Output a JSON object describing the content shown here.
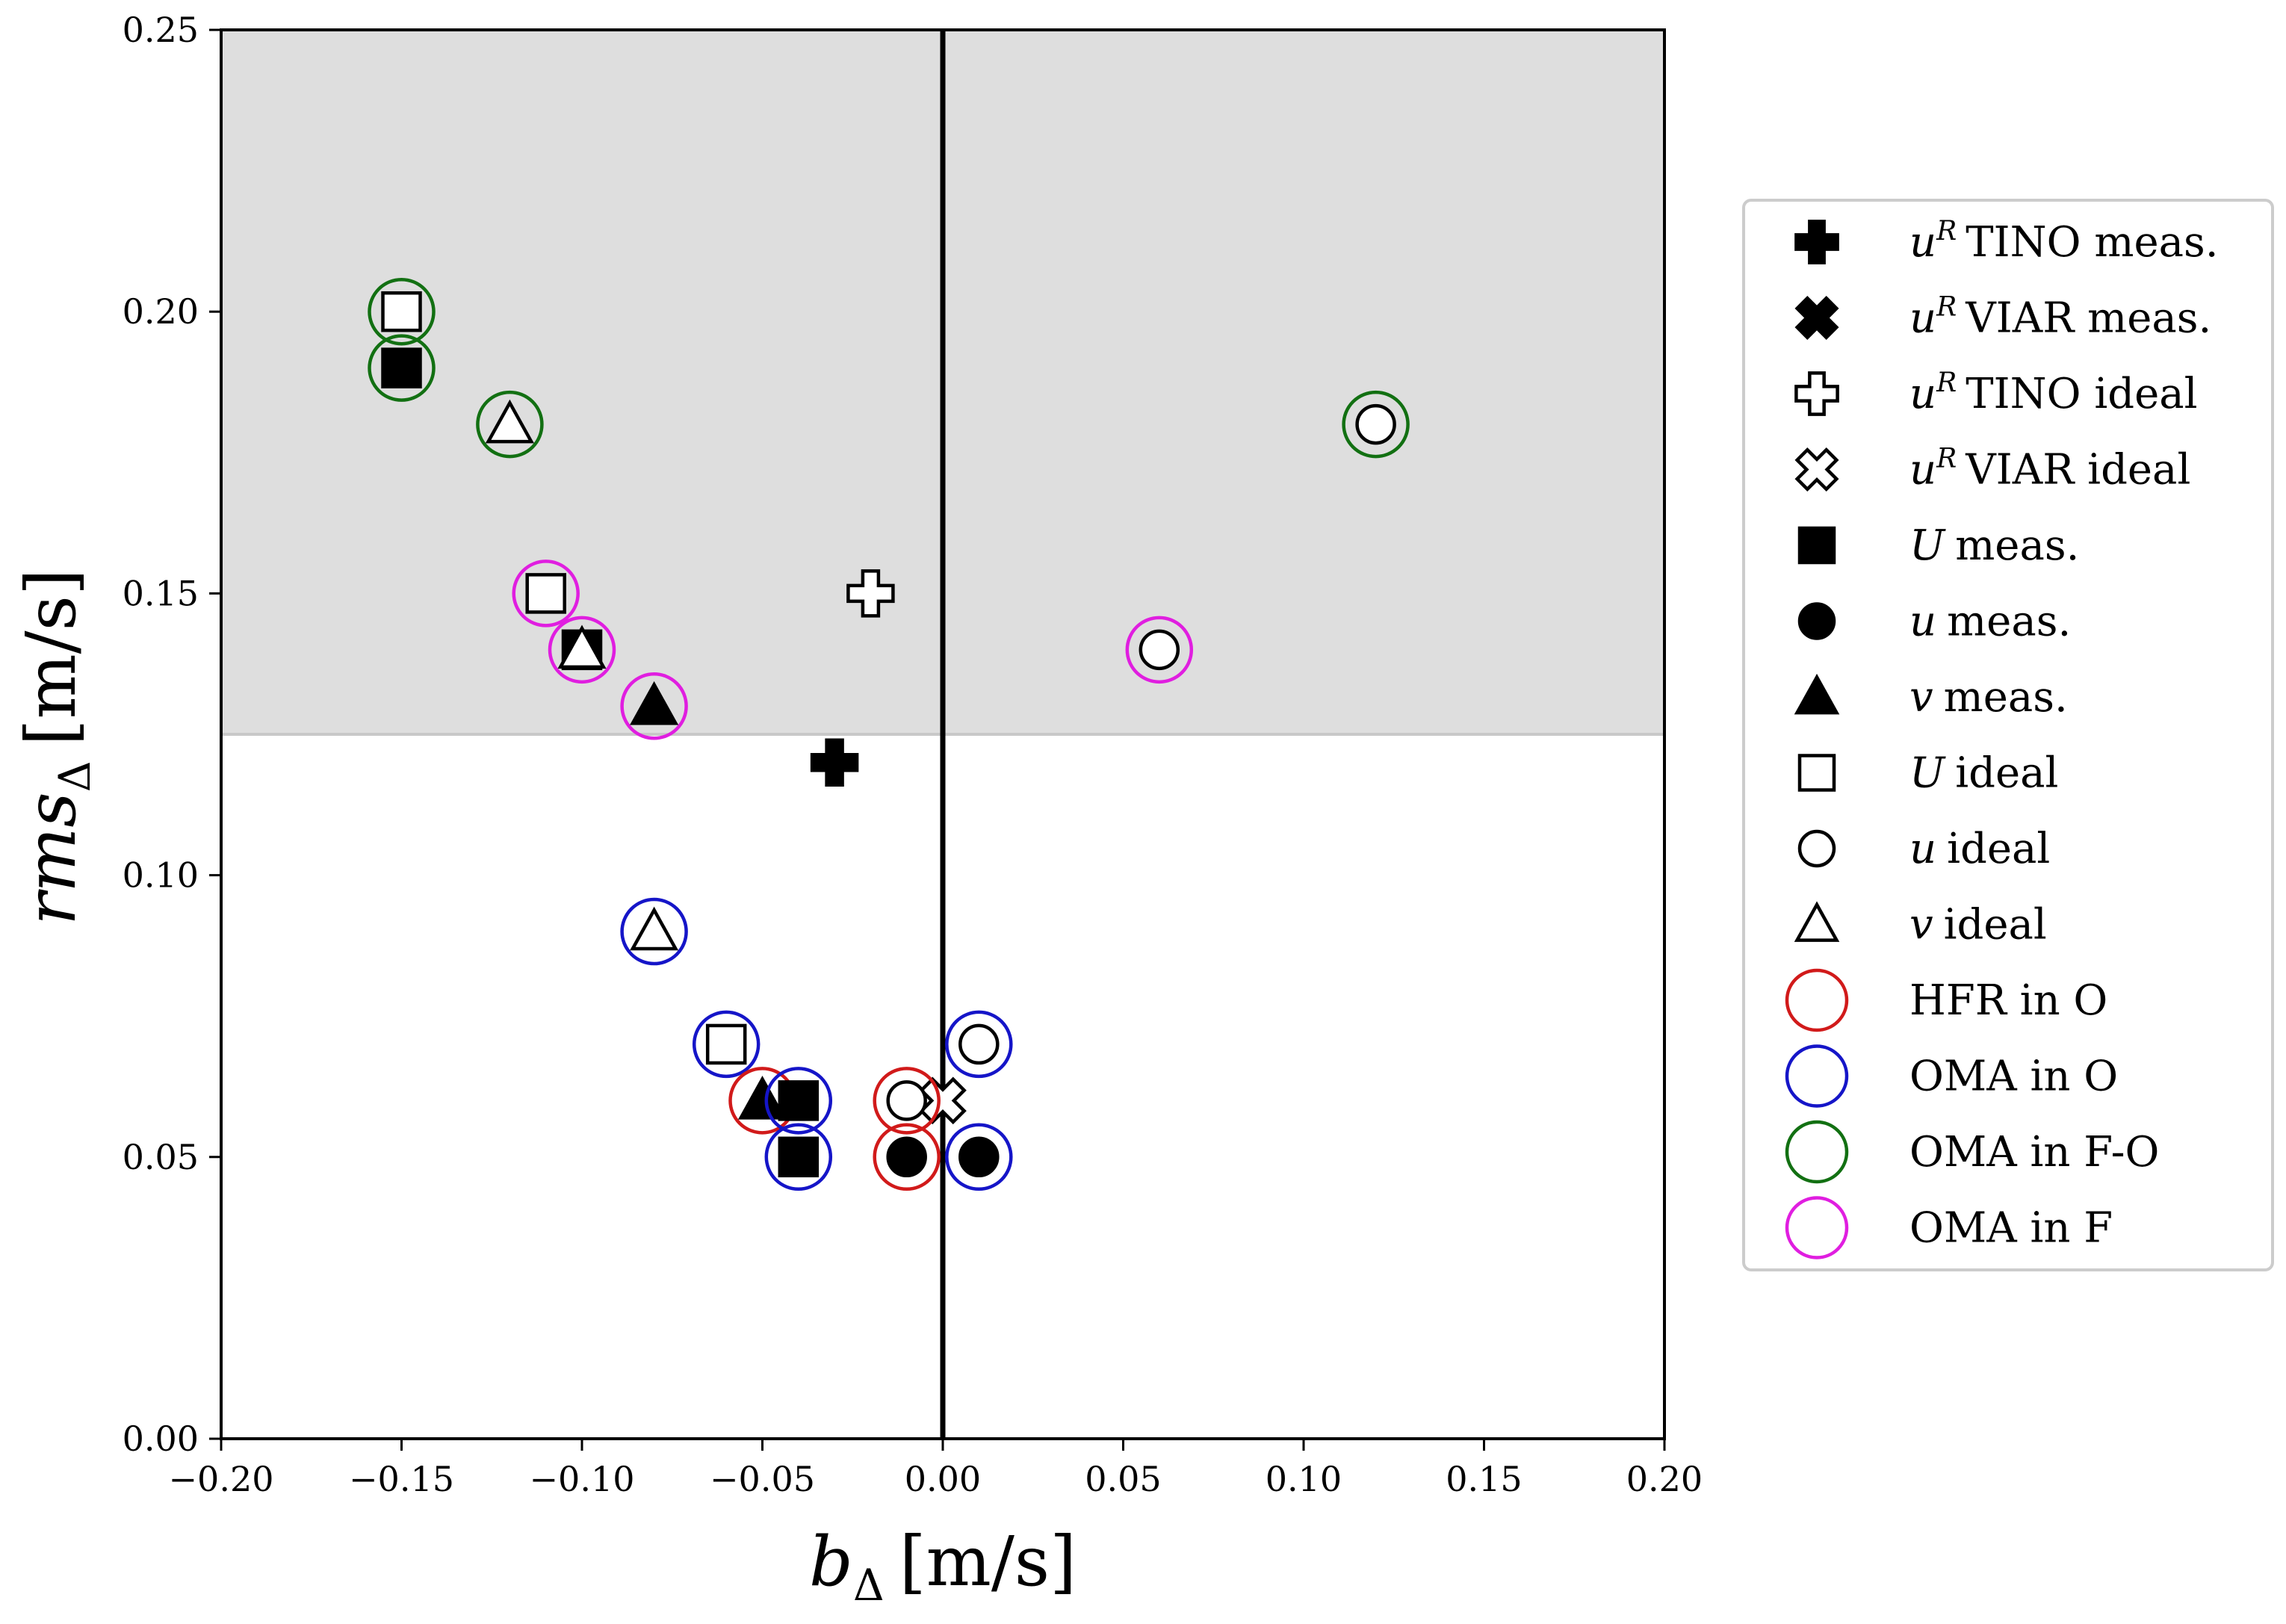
{
  "chart_data": {
    "type": "scatter",
    "title": "",
    "xlabel": {
      "main": "b",
      "sub": "Δ",
      "unit": "[m/s]"
    },
    "ylabel": {
      "main": "rms",
      "sub": "Δ",
      "unit": "[m/s]"
    },
    "xlim": [
      -0.2,
      0.2
    ],
    "ylim": [
      0.0,
      0.25
    ],
    "xticks": [
      "−0.20",
      "−0.15",
      "−0.10",
      "−0.05",
      "0.00",
      "0.05",
      "0.10",
      "0.15",
      "0.20"
    ],
    "yticks": [
      "0.00",
      "0.05",
      "0.10",
      "0.15",
      "0.20",
      "0.25"
    ],
    "xtick_values": [
      -0.2,
      -0.15,
      -0.1,
      -0.05,
      0.0,
      0.05,
      0.1,
      0.15,
      0.2
    ],
    "ytick_values": [
      0.0,
      0.05,
      0.1,
      0.15,
      0.2,
      0.25
    ],
    "shaded_region": {
      "y_from": 0.125,
      "y_to": 0.25,
      "color": "#dedede"
    },
    "vertical_line_x": 0.0,
    "ring_colors": {
      "HFR_O": "#d11a1a",
      "OMA_O": "#1515c8",
      "OMA_FO": "#127012",
      "OMA_F": "#e01ee0"
    },
    "points": [
      {
        "x": -0.15,
        "y": 0.2,
        "marker": "square-open",
        "ring": "OMA_FO"
      },
      {
        "x": -0.15,
        "y": 0.19,
        "marker": "square-filled",
        "ring": "OMA_FO"
      },
      {
        "x": -0.12,
        "y": 0.18,
        "marker": "triangle-open",
        "ring": "OMA_FO"
      },
      {
        "x": 0.12,
        "y": 0.18,
        "marker": "circle-open",
        "ring": "OMA_FO"
      },
      {
        "x": -0.11,
        "y": 0.15,
        "marker": "square-open",
        "ring": "OMA_F"
      },
      {
        "x": -0.1,
        "y": 0.14,
        "marker": "square-filled",
        "ring": "OMA_F"
      },
      {
        "x": -0.1,
        "y": 0.14,
        "marker": "triangle-open",
        "ring": null
      },
      {
        "x": -0.08,
        "y": 0.13,
        "marker": "triangle-filled",
        "ring": "OMA_F"
      },
      {
        "x": 0.06,
        "y": 0.14,
        "marker": "circle-open",
        "ring": "OMA_F"
      },
      {
        "x": -0.02,
        "y": 0.15,
        "marker": "plus-open",
        "ring": null
      },
      {
        "x": -0.03,
        "y": 0.12,
        "marker": "plus-filled",
        "ring": null
      },
      {
        "x": -0.08,
        "y": 0.09,
        "marker": "triangle-open",
        "ring": "OMA_O"
      },
      {
        "x": -0.06,
        "y": 0.07,
        "marker": "square-open",
        "ring": "OMA_O"
      },
      {
        "x": -0.05,
        "y": 0.06,
        "marker": "triangle-filled",
        "ring": "HFR_O"
      },
      {
        "x": -0.04,
        "y": 0.06,
        "marker": "square-filled",
        "ring": "OMA_O"
      },
      {
        "x": -0.04,
        "y": 0.05,
        "marker": "square-filled",
        "ring": "OMA_O"
      },
      {
        "x": 0.0,
        "y": 0.06,
        "marker": "x-open",
        "ring": null
      },
      {
        "x": -0.01,
        "y": 0.06,
        "marker": "circle-open",
        "ring": "HFR_O"
      },
      {
        "x": -0.01,
        "y": 0.05,
        "marker": "circle-filled",
        "ring": "HFR_O"
      },
      {
        "x": 0.01,
        "y": 0.07,
        "marker": "circle-open",
        "ring": "OMA_O"
      },
      {
        "x": 0.01,
        "y": 0.05,
        "marker": "circle-filled",
        "ring": "OMA_O"
      }
    ],
    "legend": {
      "placement": "right",
      "entries": [
        {
          "marker": "plus-filled",
          "sym": "u",
          "sup": "R",
          "text": "TINO meas."
        },
        {
          "marker": "x-filled",
          "sym": "u",
          "sup": "R",
          "text": "VIAR meas."
        },
        {
          "marker": "plus-open",
          "sym": "u",
          "sup": "R",
          "text": "TINO ideal"
        },
        {
          "marker": "x-open",
          "sym": "u",
          "sup": "R",
          "text": "VIAR ideal"
        },
        {
          "marker": "square-filled",
          "sym": "U",
          "text": "meas."
        },
        {
          "marker": "circle-filled",
          "sym": "u",
          "text": "meas."
        },
        {
          "marker": "triangle-filled",
          "sym": "v",
          "text": "meas."
        },
        {
          "marker": "square-open",
          "sym": "U",
          "text": "ideal"
        },
        {
          "marker": "circle-open",
          "sym": "u",
          "text": "ideal"
        },
        {
          "marker": "triangle-open",
          "sym": "v",
          "text": "ideal"
        },
        {
          "marker": "ring",
          "ring": "HFR_O",
          "text": "HFR in O"
        },
        {
          "marker": "ring",
          "ring": "OMA_O",
          "text": "OMA in O"
        },
        {
          "marker": "ring",
          "ring": "OMA_FO",
          "text": "OMA in F-O"
        },
        {
          "marker": "ring",
          "ring": "OMA_F",
          "text": "OMA in F"
        }
      ]
    }
  }
}
